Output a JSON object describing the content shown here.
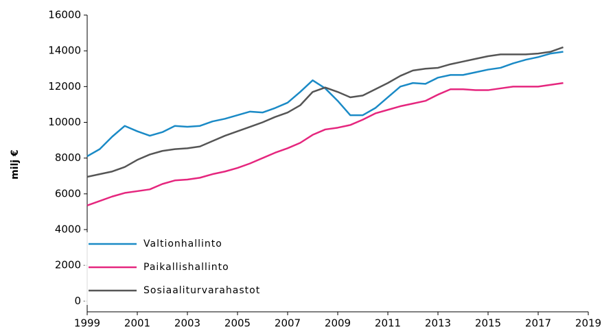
{
  "chart_data": {
    "type": "line",
    "y_label": "milj €",
    "x": [
      1999,
      1999.5,
      2000,
      2000.5,
      2001,
      2001.5,
      2002,
      2002.5,
      2003,
      2003.5,
      2004,
      2004.5,
      2005,
      2005.5,
      2006,
      2006.5,
      2007,
      2007.5,
      2008,
      2008.5,
      2009,
      2009.5,
      2010,
      2010.5,
      2011,
      2011.5,
      2012,
      2012.5,
      2013,
      2013.5,
      2014,
      2014.5,
      2015,
      2015.5,
      2016,
      2016.5,
      2017,
      2017.5,
      2018
    ],
    "series": [
      {
        "name": "Valtionhallinto",
        "color": "#1a8ac6",
        "values": [
          8100,
          8500,
          9200,
          9800,
          9500,
          9250,
          9450,
          9800,
          9750,
          9800,
          10050,
          10200,
          10400,
          10600,
          10550,
          10800,
          11100,
          11700,
          12350,
          11900,
          11200,
          10400,
          10400,
          10800,
          11400,
          12000,
          12200,
          12150,
          12500,
          12650,
          12650,
          12800,
          12950,
          13050,
          13300,
          13500,
          13650,
          13850,
          13950
        ]
      },
      {
        "name": "Paikallishallinto",
        "color": "#e5267e",
        "values": [
          5350,
          5600,
          5850,
          6050,
          6150,
          6250,
          6550,
          6750,
          6800,
          6900,
          7100,
          7250,
          7450,
          7700,
          8000,
          8300,
          8550,
          8850,
          9300,
          9600,
          9700,
          9850,
          10150,
          10500,
          10700,
          10900,
          11050,
          11200,
          11550,
          11850,
          11850,
          11800,
          11800,
          11900,
          12000,
          12000,
          12000,
          12100,
          12200
        ]
      },
      {
        "name": "Sosiaaliturvarahastot",
        "color": "#555555",
        "values": [
          6950,
          7100,
          7250,
          7500,
          7900,
          8200,
          8400,
          8500,
          8550,
          8650,
          8950,
          9250,
          9500,
          9750,
          10000,
          10300,
          10550,
          10950,
          11700,
          11950,
          11700,
          11400,
          11500,
          11850,
          12200,
          12600,
          12900,
          13000,
          13050,
          13250,
          13400,
          13550,
          13700,
          13800,
          13800,
          13800,
          13850,
          13950,
          14200
        ]
      }
    ],
    "xlim": [
      1999,
      2019
    ],
    "xticks": [
      1999,
      2001,
      2003,
      2005,
      2007,
      2009,
      2011,
      2013,
      2015,
      2017,
      2019
    ],
    "ylim": [
      -600,
      16000
    ],
    "yticks": [
      0,
      2000,
      4000,
      6000,
      8000,
      10000,
      12000,
      14000,
      16000
    ],
    "grid": false,
    "legend": "lower left"
  }
}
